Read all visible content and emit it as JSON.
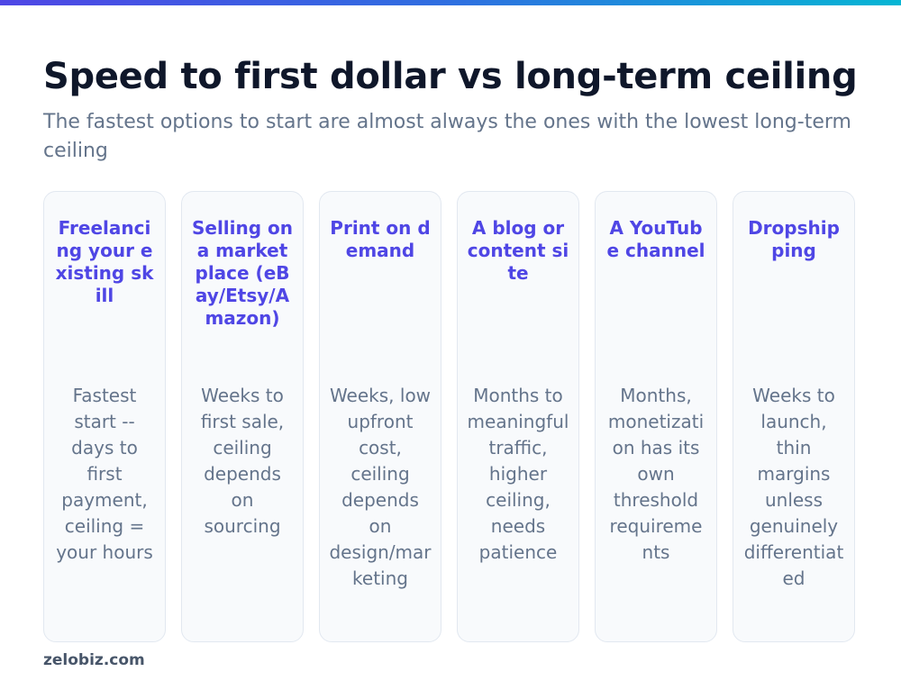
{
  "title": "Speed to first dollar vs long-term ceiling",
  "subtitle": "The fastest options to start are almost always the ones with the lowest long-term ceiling",
  "cards": [
    {
      "title": "Freelancing your existing skill",
      "desc": "Fastest start -- days to first payment, ceiling = your hours"
    },
    {
      "title": "Selling on a marketplace (eBay/Etsy/Amazon)",
      "desc": "Weeks to first sale, ceiling depends on sourcing"
    },
    {
      "title": "Print on demand",
      "desc": "Weeks, low upfront cost, ceiling depends on design/marketing"
    },
    {
      "title": "A blog or content site",
      "desc": "Months to meaningful traffic, higher ceiling, needs patience"
    },
    {
      "title": "A YouTube channel",
      "desc": "Months, monetization has its own threshold requirements"
    },
    {
      "title": "Dropshipping",
      "desc": "Weeks to launch, thin margins unless genuinely differentiated"
    }
  ],
  "footer": "zelobiz.com",
  "colors": {
    "accent": "#4f46e5",
    "title": "#0f172a",
    "muted": "#64748b",
    "card_bg": "#f8fafc",
    "card_border": "#e2e8f0"
  }
}
